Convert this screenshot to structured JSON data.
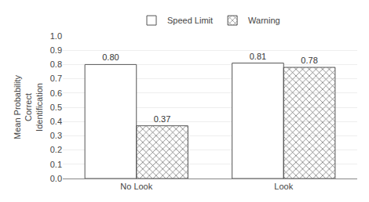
{
  "chart_data": {
    "type": "bar",
    "categories": [
      "No Look",
      "Look"
    ],
    "series": [
      {
        "name": "Speed Limit",
        "color": "#ffffff",
        "values": [
          0.8,
          0.81
        ],
        "value_labels": [
          "0.80",
          "0.81"
        ]
      },
      {
        "name": "Warning",
        "color": "#d4e857",
        "values": [
          0.37,
          0.78
        ],
        "value_labels": [
          "0.37",
          "0.78"
        ]
      }
    ],
    "y_label": "Mean Probability\nCorrect\nIdentification",
    "ylim": [
      0.0,
      1.0
    ],
    "yticks": [
      {
        "value": 0.0,
        "label": "0.0"
      },
      0.1,
      0.2,
      0.3,
      0.4,
      0.5,
      0.6,
      0.7,
      0.8,
      0.9,
      {
        "value": 1.0,
        "label": "1.0"
      }
    ],
    "grid": true,
    "legend": "top",
    "data_labels": true
  }
}
